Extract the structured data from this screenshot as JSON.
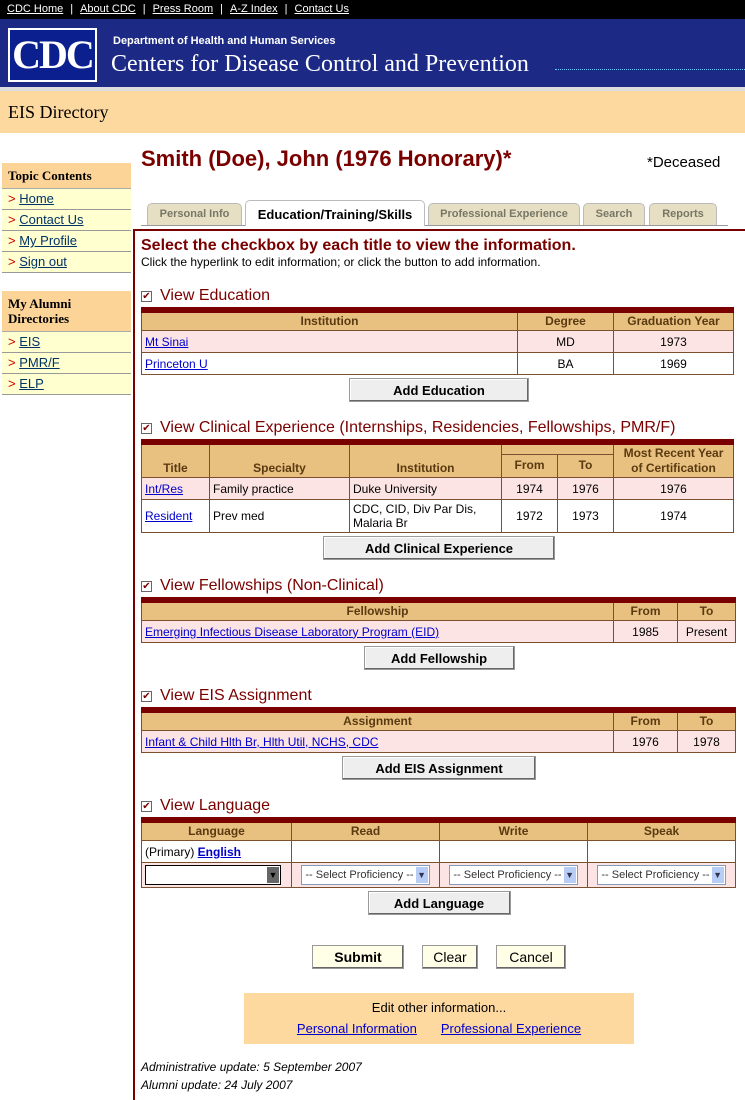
{
  "topnav": [
    "CDC Home",
    "About CDC",
    "Press Room",
    "A-Z Index",
    "Contact Us"
  ],
  "banner": {
    "logo": "CDC",
    "department": "Department of Health and Human Services",
    "agency": "Centers for Disease Control and Prevention",
    "colors": {
      "banner": "#1c2a85",
      "accent": "#7a0000",
      "band": "#fdd9a0"
    }
  },
  "directory_title": "EIS Directory",
  "sidebar": {
    "topic_heading": "Topic Contents",
    "topic_items": [
      "Home",
      "Contact Us",
      "My Profile",
      "Sign out"
    ],
    "alumni_heading": "My Alumni Directories",
    "alumni_items": [
      "EIS",
      "PMR/F",
      "ELP"
    ]
  },
  "person": {
    "name": "Smith (Doe), John (1976 Honorary)*",
    "note": "*Deceased"
  },
  "tabs": [
    "Personal Info",
    "Education/Training/Skills",
    "Professional Experience",
    "Search",
    "Reports"
  ],
  "active_tab": "Education/Training/Skills",
  "instructions": {
    "heading": "Select the checkbox by each title to view the information.",
    "sub": "Click the hyperlink to edit information; or click the button to add information."
  },
  "education": {
    "title": "View Education",
    "checked": true,
    "headers": [
      "Institution",
      "Degree",
      "Graduation Year"
    ],
    "rows": [
      [
        "Mt Sinai",
        "MD",
        "1973"
      ],
      [
        "Princeton U",
        "BA",
        "1969"
      ]
    ],
    "button": "Add Education"
  },
  "clinical": {
    "title": "View Clinical Experience (Internships, Residencies, Fellowships, PMR/F)",
    "checked": true,
    "headers": [
      "Title",
      "Specialty",
      "Institution",
      "From",
      "To",
      "Most Recent Year of Certification"
    ],
    "rows": [
      [
        "Int/Res",
        "Family practice",
        "Duke University",
        "1974",
        "1976",
        "1976"
      ],
      [
        "Resident",
        "Prev med",
        "CDC, CID, Div Par Dis, Malaria Br",
        "1972",
        "1973",
        "1974"
      ]
    ],
    "button": "Add Clinical Experience"
  },
  "fellowships": {
    "title": "View Fellowships (Non-Clinical)",
    "checked": true,
    "headers": [
      "Fellowship",
      "From",
      "To"
    ],
    "rows": [
      [
        "Emerging Infectious Disease Laboratory Program (EID)",
        "1985",
        "Present"
      ]
    ],
    "button": "Add Fellowship"
  },
  "eis": {
    "title": "View EIS Assignment",
    "checked": true,
    "headers": [
      "Assignment",
      "From",
      "To"
    ],
    "rows": [
      [
        "Infant & Child Hlth Br, Hlth Util, NCHS, CDC",
        "1976",
        "1978"
      ]
    ],
    "button": "Add EIS Assignment"
  },
  "language": {
    "title": "View Language",
    "checked": true,
    "headers": [
      "Language",
      "Read",
      "Write",
      "Speak"
    ],
    "primary_label": "(Primary)",
    "primary_language": "English",
    "language_select": "",
    "proficiency_placeholder": "-- Select Proficiency --",
    "button": "Add Language"
  },
  "form_buttons": [
    "Submit",
    "Clear",
    "Cancel"
  ],
  "edit_other": {
    "label": "Edit other information...",
    "links": [
      "Personal Information",
      "Professional Experience"
    ]
  },
  "updates": [
    "Administrative update: 5 September 2007",
    "Alumni update: 24 July 2007"
  ]
}
